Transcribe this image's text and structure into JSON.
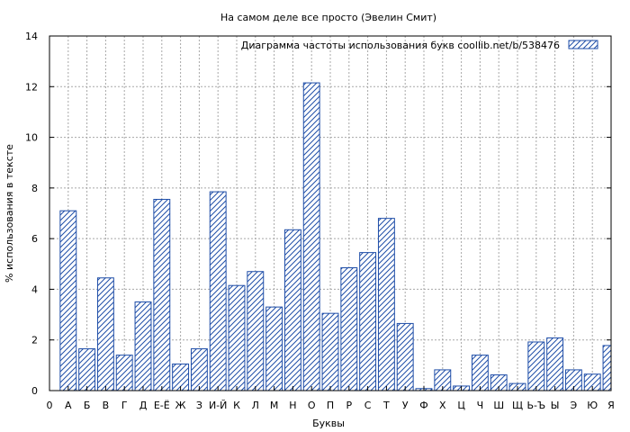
{
  "chart_data": {
    "type": "bar",
    "title": "На самом деле все просто (Эвелин Смит)",
    "xlabel": "Буквы",
    "ylabel": "% использования в тексте",
    "ylim": [
      0,
      14
    ],
    "yticks": [
      0,
      2,
      4,
      6,
      8,
      10,
      12,
      14
    ],
    "grid": true,
    "legend": {
      "placement": "top-right"
    },
    "x_tick_labels": [
      "0",
      "А",
      "Б",
      "В",
      "Г",
      "Д",
      "Е-Ё",
      "Ж",
      "З",
      "И-Й",
      "К",
      "Л",
      "М",
      "Н",
      "О",
      "П",
      "Р",
      "С",
      "Т",
      "У",
      "Ф",
      "Х",
      "Ц",
      "Ч",
      "Ш",
      "Щ",
      "Ь-Ъ",
      "Ы",
      "Э",
      "Ю",
      "Я"
    ],
    "categories": [
      "А",
      "Б",
      "В",
      "Г",
      "Д",
      "Е-Ё",
      "Ж",
      "З",
      "И-Й",
      "К",
      "Л",
      "М",
      "Н",
      "О",
      "П",
      "Р",
      "С",
      "Т",
      "У",
      "Ф",
      "Х",
      "Ц",
      "Ч",
      "Ш",
      "Щ",
      "Ь-Ъ",
      "Ы",
      "Э",
      "Ю",
      "Я"
    ],
    "series": [
      {
        "name": "Диаграмма частоты использования букв  coollib.net/b/538476",
        "color": "#1f4ea8",
        "values": [
          7.1,
          1.65,
          4.45,
          1.4,
          3.5,
          7.55,
          1.05,
          1.65,
          7.85,
          4.15,
          4.7,
          3.3,
          6.35,
          12.15,
          3.05,
          4.85,
          5.45,
          6.8,
          2.65,
          0.08,
          0.82,
          0.18,
          1.4,
          0.62,
          0.28,
          1.92,
          2.08,
          0.82,
          0.65,
          1.78
        ]
      }
    ]
  }
}
